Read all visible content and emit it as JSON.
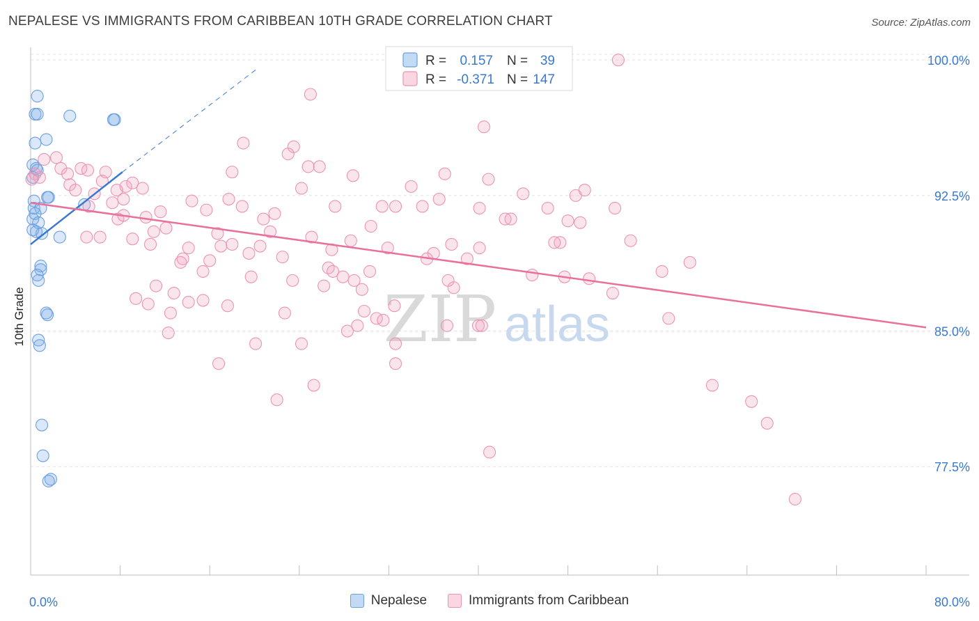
{
  "title": "NEPALESE VS IMMIGRANTS FROM CARIBBEAN 10TH GRADE CORRELATION CHART",
  "source": "Source: ZipAtlas.com",
  "watermark": {
    "zip": "ZIP",
    "atlas": "atlas"
  },
  "chart_data": {
    "type": "scatter",
    "xlabel": "",
    "ylabel": "10th Grade",
    "xlim": [
      0,
      80
    ],
    "ylim": [
      71.5,
      100.7
    ],
    "x_tick_labels": [
      {
        "value": 0,
        "label": "0.0%"
      },
      {
        "value": 80,
        "label": "80.0%"
      }
    ],
    "x_minor_ticks": [
      8,
      16,
      24,
      32,
      40,
      48,
      56,
      64,
      72,
      80
    ],
    "y_ticks": [
      {
        "value": 100.0,
        "label": "100.0%"
      },
      {
        "value": 92.5,
        "label": "92.5%"
      },
      {
        "value": 85.0,
        "label": "85.0%"
      },
      {
        "value": 77.5,
        "label": "77.5%"
      }
    ],
    "grid": true,
    "legend_stats": [
      {
        "r_label": "R =",
        "r_value": "0.157",
        "n_label": "N =",
        "n_value": "39"
      },
      {
        "r_label": "R =",
        "r_value": "-0.371",
        "n_label": "N =",
        "n_value": "147"
      }
    ],
    "series": [
      {
        "name": "Nepalese",
        "color": "#7aaee8",
        "line_color": "#3a78d0",
        "trend": {
          "x0": 0,
          "y0": 89.8,
          "x1": 8.2,
          "y1": 93.8,
          "dash_to_x": 20.2,
          "dash_to_y": 99.5
        },
        "points": [
          [
            0.6,
            98.0
          ],
          [
            0.4,
            97.0
          ],
          [
            0.6,
            97.0
          ],
          [
            3.5,
            96.9
          ],
          [
            7.5,
            96.7
          ],
          [
            7.4,
            96.7
          ],
          [
            1.4,
            95.6
          ],
          [
            0.4,
            95.4
          ],
          [
            0.2,
            94.2
          ],
          [
            0.5,
            94.0
          ],
          [
            0.6,
            93.9
          ],
          [
            0.2,
            93.5
          ],
          [
            1.5,
            92.4
          ],
          [
            1.6,
            92.4
          ],
          [
            0.3,
            92.2
          ],
          [
            0.3,
            91.8
          ],
          [
            0.9,
            91.8
          ],
          [
            4.8,
            92.0
          ],
          [
            0.2,
            91.2
          ],
          [
            0.4,
            91.5
          ],
          [
            0.7,
            91.0
          ],
          [
            0.2,
            90.6
          ],
          [
            0.5,
            90.5
          ],
          [
            1.0,
            90.4
          ],
          [
            2.6,
            90.2
          ],
          [
            0.9,
            88.6
          ],
          [
            0.9,
            88.4
          ],
          [
            0.6,
            88.1
          ],
          [
            0.7,
            87.8
          ],
          [
            1.4,
            86.0
          ],
          [
            1.5,
            85.9
          ],
          [
            0.7,
            84.5
          ],
          [
            0.8,
            84.2
          ],
          [
            1.0,
            79.8
          ],
          [
            1.1,
            78.1
          ],
          [
            1.8,
            76.8
          ],
          [
            1.6,
            76.7
          ]
        ]
      },
      {
        "name": "Immigrants from Caribbean",
        "color": "#f2a3bd",
        "line_color": "#e8709a",
        "trend": {
          "x0": 0,
          "y0": 92.1,
          "x1": 80,
          "y1": 85.2
        },
        "points": [
          [
            52.5,
            100.0
          ],
          [
            25,
            98.1
          ],
          [
            40.5,
            96.3
          ],
          [
            19,
            95.4
          ],
          [
            23.5,
            95.2
          ],
          [
            23,
            94.8
          ],
          [
            1.2,
            94.5
          ],
          [
            2.3,
            94.6
          ],
          [
            4.5,
            94.0
          ],
          [
            2.7,
            94.0
          ],
          [
            24.8,
            94.1
          ],
          [
            25.8,
            94.1
          ],
          [
            5.1,
            93.9
          ],
          [
            0.4,
            93.7
          ],
          [
            0.8,
            93.5
          ],
          [
            18.0,
            93.8
          ],
          [
            3.3,
            93.7
          ],
          [
            6.7,
            93.8
          ],
          [
            28.8,
            93.6
          ],
          [
            37,
            93.7
          ],
          [
            40.9,
            93.4
          ],
          [
            0.1,
            93.4
          ],
          [
            6.4,
            93.3
          ],
          [
            9.1,
            93.2
          ],
          [
            8.5,
            93.0
          ],
          [
            3.5,
            93.1
          ],
          [
            10.0,
            92.9
          ],
          [
            7.7,
            92.8
          ],
          [
            4.0,
            92.8
          ],
          [
            5.7,
            92.6
          ],
          [
            24.2,
            92.9
          ],
          [
            34.0,
            93.0
          ],
          [
            49.5,
            92.8
          ],
          [
            44,
            92.6
          ],
          [
            48.7,
            92.5
          ],
          [
            14.4,
            92.2
          ],
          [
            36.5,
            92.3
          ],
          [
            17.7,
            92.3
          ],
          [
            8.3,
            92.3
          ],
          [
            7.3,
            92.1
          ],
          [
            5.2,
            91.9
          ],
          [
            18.9,
            91.9
          ],
          [
            27.2,
            91.9
          ],
          [
            31.4,
            91.9
          ],
          [
            32.6,
            91.9
          ],
          [
            35.0,
            91.9
          ],
          [
            40.1,
            91.8
          ],
          [
            46.2,
            91.8
          ],
          [
            52.2,
            91.8
          ],
          [
            15.7,
            91.7
          ],
          [
            11.6,
            91.6
          ],
          [
            21.8,
            91.5
          ],
          [
            10.3,
            91.3
          ],
          [
            7.8,
            91.2
          ],
          [
            20.8,
            91.2
          ],
          [
            42.4,
            91.2
          ],
          [
            42.9,
            91.2
          ],
          [
            48.0,
            91.1
          ],
          [
            49.1,
            91.0
          ],
          [
            30.4,
            90.8
          ],
          [
            12.1,
            90.7
          ],
          [
            21.4,
            90.5
          ],
          [
            11.0,
            90.5
          ],
          [
            16.7,
            90.4
          ],
          [
            5.0,
            90.2
          ],
          [
            9.1,
            90.1
          ],
          [
            25.1,
            90.2
          ],
          [
            28.6,
            90.0
          ],
          [
            10.7,
            89.8
          ],
          [
            18.0,
            89.8
          ],
          [
            17.0,
            89.7
          ],
          [
            20.5,
            89.7
          ],
          [
            14.1,
            89.6
          ],
          [
            31.9,
            89.6
          ],
          [
            26.9,
            89.5
          ],
          [
            47.3,
            89.9
          ],
          [
            46.8,
            89.9
          ],
          [
            37.6,
            89.8
          ],
          [
            40.1,
            89.6
          ],
          [
            53.6,
            90.0
          ],
          [
            19.5,
            89.3
          ],
          [
            22.5,
            89.1
          ],
          [
            36.0,
            89.3
          ],
          [
            39.0,
            89.0
          ],
          [
            35.4,
            89.0
          ],
          [
            13.6,
            89.0
          ],
          [
            13.4,
            88.8
          ],
          [
            16.0,
            88.9
          ],
          [
            58.9,
            88.8
          ],
          [
            26.6,
            88.5
          ],
          [
            27.0,
            88.3
          ],
          [
            30.3,
            88.3
          ],
          [
            15.4,
            88.3
          ],
          [
            56.4,
            88.3
          ],
          [
            27.9,
            88.0
          ],
          [
            44.8,
            88.1
          ],
          [
            19.7,
            88.0
          ],
          [
            28.9,
            87.8
          ],
          [
            23.4,
            87.8
          ],
          [
            37.3,
            87.8
          ],
          [
            26.2,
            87.5
          ],
          [
            11.2,
            87.5
          ],
          [
            29.6,
            87.3
          ],
          [
            37.8,
            87.4
          ],
          [
            12.8,
            87.1
          ],
          [
            52.0,
            87.1
          ],
          [
            9.4,
            86.8
          ],
          [
            15.4,
            86.7
          ],
          [
            14.1,
            86.6
          ],
          [
            10.5,
            86.5
          ],
          [
            17.6,
            86.4
          ],
          [
            29.8,
            86.1
          ],
          [
            12.5,
            86.0
          ],
          [
            22.7,
            86.0
          ],
          [
            30.9,
            85.7
          ],
          [
            57.0,
            85.7
          ],
          [
            31.5,
            85.6
          ],
          [
            29.2,
            85.3
          ],
          [
            37.2,
            85.3
          ],
          [
            40.0,
            85.3
          ],
          [
            40.3,
            85.3
          ],
          [
            12.3,
            84.9
          ],
          [
            28.3,
            85.0
          ],
          [
            20.1,
            84.3
          ],
          [
            24.2,
            84.3
          ],
          [
            32.6,
            84.3
          ],
          [
            16.8,
            83.2
          ],
          [
            32.6,
            83.2
          ],
          [
            25.3,
            82.0
          ],
          [
            60.9,
            82.0
          ],
          [
            22.0,
            81.2
          ],
          [
            64.4,
            81.1
          ],
          [
            65.8,
            79.9
          ],
          [
            41.0,
            78.3
          ],
          [
            68.3,
            75.7
          ],
          [
            49.9,
            87.9
          ],
          [
            47.7,
            88.0
          ],
          [
            32.5,
            86.4
          ],
          [
            6.2,
            90.2
          ],
          [
            8.3,
            91.4
          ]
        ]
      }
    ]
  }
}
